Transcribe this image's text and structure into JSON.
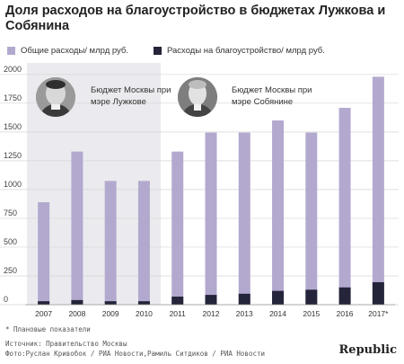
{
  "title": "Доля расходов на благоустройство в бюджетах Лужкова и Собянина",
  "legend": {
    "total": "Общие расходы/ млрд руб.",
    "improvement": "Расходы на благоустройство/ млрд руб."
  },
  "colors": {
    "total": "#b3a9cf",
    "improvement": "#24243a",
    "shade": "#ebebef",
    "grid": "#d6d6d6"
  },
  "annotations": {
    "luzhkov": "Бюджет Москвы при мэре Лужкове",
    "sobyanin": "Бюджет Москвы при мэре Собянине"
  },
  "footnote": "* Плановые показатели",
  "source": "Источник: Правительство Москвы",
  "photo_credit": "Фото:Руслан Кривобок / РИА Новости,Рамиль Ситдиков / РИА Новости",
  "brand": "Republic",
  "chart_data": {
    "type": "bar",
    "categories": [
      "2007",
      "2008",
      "2009",
      "2010",
      "2011",
      "2012",
      "2013",
      "2014",
      "2015",
      "2016",
      "2017*"
    ],
    "series": [
      {
        "name": "Общие расходы/ млрд руб.",
        "values": [
          890,
          1330,
          1075,
          1075,
          1330,
          1495,
          1495,
          1600,
          1495,
          1710,
          1980
        ]
      },
      {
        "name": "Расходы на благоустройство/ млрд руб.",
        "values": [
          30,
          40,
          30,
          30,
          70,
          85,
          95,
          120,
          130,
          150,
          195
        ]
      }
    ],
    "yticks": [
      0,
      250,
      500,
      750,
      1000,
      1250,
      1500,
      1750,
      2000
    ],
    "ylim": [
      0,
      2100
    ],
    "grid": true,
    "shaded_categories": [
      "2007",
      "2008",
      "2009",
      "2010"
    ]
  }
}
